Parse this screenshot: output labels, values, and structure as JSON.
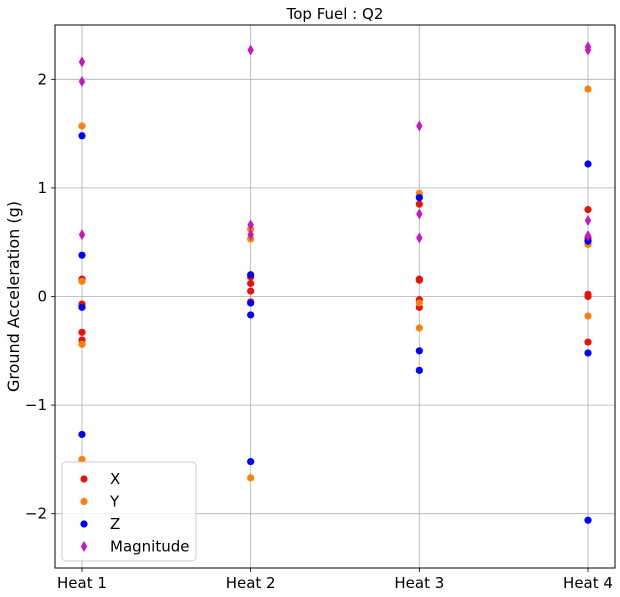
{
  "chart_data": {
    "type": "scatter",
    "title": "Top Fuel  : Q2",
    "xlabel": "",
    "ylabel": "Ground Acceleration (g)",
    "categories": [
      "Heat 1",
      "Heat 2",
      "Heat 3",
      "Heat 4"
    ],
    "ylim": [
      -2.5,
      2.5
    ],
    "yticks": [
      -2,
      -1,
      0,
      1,
      2
    ],
    "ytick_labels": [
      "−2",
      "−1",
      "0",
      "1",
      "2"
    ],
    "grid": true,
    "legend_position": "lower-left",
    "series": [
      {
        "name": "X",
        "color": "#e8110f",
        "marker": "circle",
        "points": [
          {
            "x": "Heat 1",
            "y": 0.16
          },
          {
            "x": "Heat 1",
            "y": -0.07
          },
          {
            "x": "Heat 1",
            "y": -0.09
          },
          {
            "x": "Heat 1",
            "y": -0.33
          },
          {
            "x": "Heat 1",
            "y": -0.4
          },
          {
            "x": "Heat 2",
            "y": 0.18
          },
          {
            "x": "Heat 2",
            "y": 0.12
          },
          {
            "x": "Heat 2",
            "y": 0.05
          },
          {
            "x": "Heat 2",
            "y": -0.05
          },
          {
            "x": "Heat 3",
            "y": 0.85
          },
          {
            "x": "Heat 3",
            "y": 0.16
          },
          {
            "x": "Heat 3",
            "y": 0.15
          },
          {
            "x": "Heat 3",
            "y": -0.03
          },
          {
            "x": "Heat 3",
            "y": -0.1
          },
          {
            "x": "Heat 4",
            "y": 0.8
          },
          {
            "x": "Heat 4",
            "y": 0.54
          },
          {
            "x": "Heat 4",
            "y": 0.02
          },
          {
            "x": "Heat 4",
            "y": 0.0
          },
          {
            "x": "Heat 4",
            "y": -0.42
          }
        ]
      },
      {
        "name": "Y",
        "color": "#ff7f0e",
        "marker": "circle",
        "points": [
          {
            "x": "Heat 1",
            "y": 1.57
          },
          {
            "x": "Heat 1",
            "y": 0.14
          },
          {
            "x": "Heat 1",
            "y": -0.44
          },
          {
            "x": "Heat 1",
            "y": -1.5
          },
          {
            "x": "Heat 2",
            "y": 0.62
          },
          {
            "x": "Heat 2",
            "y": 0.53
          },
          {
            "x": "Heat 2",
            "y": -1.67
          },
          {
            "x": "Heat 3",
            "y": 0.95
          },
          {
            "x": "Heat 3",
            "y": 0.93
          },
          {
            "x": "Heat 3",
            "y": -0.06
          },
          {
            "x": "Heat 3",
            "y": -0.29
          },
          {
            "x": "Heat 4",
            "y": 1.91
          },
          {
            "x": "Heat 4",
            "y": 0.48
          },
          {
            "x": "Heat 4",
            "y": -0.18
          }
        ]
      },
      {
        "name": "Z",
        "color": "#0000ff",
        "marker": "circle",
        "points": [
          {
            "x": "Heat 1",
            "y": 1.48
          },
          {
            "x": "Heat 1",
            "y": 0.38
          },
          {
            "x": "Heat 1",
            "y": -0.1
          },
          {
            "x": "Heat 1",
            "y": -1.27
          },
          {
            "x": "Heat 2",
            "y": 0.2
          },
          {
            "x": "Heat 2",
            "y": -0.06
          },
          {
            "x": "Heat 2",
            "y": -0.17
          },
          {
            "x": "Heat 2",
            "y": -1.52
          },
          {
            "x": "Heat 3",
            "y": 0.91
          },
          {
            "x": "Heat 3",
            "y": -0.5
          },
          {
            "x": "Heat 3",
            "y": -0.68
          },
          {
            "x": "Heat 4",
            "y": 1.22
          },
          {
            "x": "Heat 4",
            "y": 0.51
          },
          {
            "x": "Heat 4",
            "y": -0.52
          },
          {
            "x": "Heat 4",
            "y": -2.06
          }
        ]
      },
      {
        "name": "Magnitude",
        "color": "#c418c4",
        "marker": "thin_diamond",
        "points": [
          {
            "x": "Heat 1",
            "y": 2.16
          },
          {
            "x": "Heat 1",
            "y": 1.98
          },
          {
            "x": "Heat 1",
            "y": 0.57
          },
          {
            "x": "Heat 2",
            "y": 2.27
          },
          {
            "x": "Heat 2",
            "y": 0.66
          },
          {
            "x": "Heat 2",
            "y": 0.57
          },
          {
            "x": "Heat 3",
            "y": 1.57
          },
          {
            "x": "Heat 3",
            "y": 0.76
          },
          {
            "x": "Heat 3",
            "y": 0.54
          },
          {
            "x": "Heat 4",
            "y": 2.3
          },
          {
            "x": "Heat 4",
            "y": 2.27
          },
          {
            "x": "Heat 4",
            "y": 0.7
          },
          {
            "x": "Heat 4",
            "y": 0.56
          }
        ]
      }
    ]
  }
}
